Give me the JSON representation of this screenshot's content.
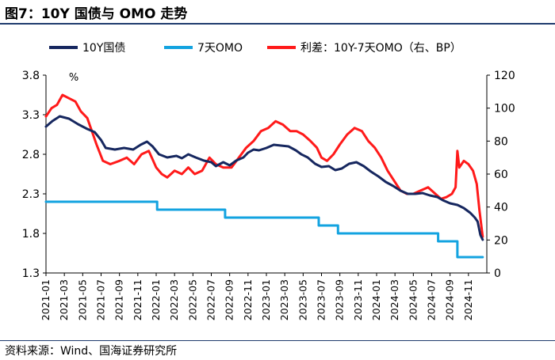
{
  "title": "图7：10Y 国债与 OMO 走势",
  "source": "资料来源：Wind、国海证券研究所",
  "chart_data": {
    "type": "line",
    "unit_label": "%",
    "x_ticks": [
      "2021-01",
      "2021-03",
      "2021-05",
      "2021-07",
      "2021-09",
      "2021-11",
      "2022-01",
      "2022-03",
      "2022-05",
      "2022-07",
      "2022-09",
      "2022-11",
      "2023-01",
      "2023-03",
      "2023-05",
      "2023-07",
      "2023-09",
      "2023-11",
      "2024-01",
      "2024-03",
      "2024-05",
      "2024-07",
      "2024-09",
      "2024-11"
    ],
    "x_range": [
      0,
      48
    ],
    "left_axis": {
      "ylim": [
        1.3,
        3.8
      ],
      "ticks": [
        "1.3",
        "1.8",
        "2.3",
        "2.8",
        "3.3",
        "3.8"
      ]
    },
    "right_axis": {
      "ylim": [
        0,
        120
      ],
      "ticks": [
        "0",
        "20",
        "40",
        "60",
        "80",
        "100",
        "120"
      ]
    },
    "series": [
      {
        "name": "10Y国债",
        "color": "#16275f",
        "axis": "left",
        "points": [
          [
            0,
            3.15
          ],
          [
            0.7,
            3.22
          ],
          [
            1.5,
            3.28
          ],
          [
            2.5,
            3.25
          ],
          [
            3.5,
            3.18
          ],
          [
            4.5,
            3.12
          ],
          [
            5.3,
            3.08
          ],
          [
            6.0,
            2.98
          ],
          [
            6.5,
            2.88
          ],
          [
            7.5,
            2.86
          ],
          [
            8.5,
            2.88
          ],
          [
            9.5,
            2.86
          ],
          [
            10.3,
            2.92
          ],
          [
            11.0,
            2.96
          ],
          [
            11.6,
            2.9
          ],
          [
            12.3,
            2.8
          ],
          [
            13.2,
            2.76
          ],
          [
            14.2,
            2.78
          ],
          [
            14.8,
            2.75
          ],
          [
            15.5,
            2.8
          ],
          [
            16.3,
            2.76
          ],
          [
            17.2,
            2.72
          ],
          [
            18.0,
            2.7
          ],
          [
            18.5,
            2.65
          ],
          [
            19.3,
            2.7
          ],
          [
            20.0,
            2.66
          ],
          [
            20.7,
            2.72
          ],
          [
            21.5,
            2.76
          ],
          [
            22.0,
            2.82
          ],
          [
            22.6,
            2.86
          ],
          [
            23.2,
            2.85
          ],
          [
            24.0,
            2.88
          ],
          [
            24.8,
            2.92
          ],
          [
            25.6,
            2.91
          ],
          [
            26.4,
            2.9
          ],
          [
            27.2,
            2.85
          ],
          [
            27.8,
            2.8
          ],
          [
            28.5,
            2.76
          ],
          [
            29.3,
            2.68
          ],
          [
            30.0,
            2.64
          ],
          [
            30.8,
            2.65
          ],
          [
            31.5,
            2.6
          ],
          [
            32.2,
            2.62
          ],
          [
            33.0,
            2.68
          ],
          [
            33.8,
            2.7
          ],
          [
            34.6,
            2.65
          ],
          [
            35.4,
            2.58
          ],
          [
            36.2,
            2.52
          ],
          [
            37.0,
            2.45
          ],
          [
            37.8,
            2.4
          ],
          [
            38.6,
            2.34
          ],
          [
            39.4,
            2.3
          ],
          [
            40.2,
            2.3
          ],
          [
            41.0,
            2.31
          ],
          [
            41.8,
            2.28
          ],
          [
            42.6,
            2.26
          ],
          [
            43.2,
            2.22
          ],
          [
            44.0,
            2.18
          ],
          [
            44.8,
            2.16
          ],
          [
            45.5,
            2.12
          ],
          [
            46.2,
            2.06
          ],
          [
            46.7,
            2.0
          ],
          [
            47.0,
            1.95
          ],
          [
            47.3,
            1.78
          ],
          [
            47.55,
            1.72
          ]
        ]
      },
      {
        "name": "7天OMO",
        "color": "#13a3e0",
        "axis": "left",
        "points": [
          [
            0,
            2.2
          ],
          [
            12.1,
            2.2
          ],
          [
            12.1,
            2.1
          ],
          [
            19.5,
            2.1
          ],
          [
            19.5,
            2.0
          ],
          [
            29.7,
            2.0
          ],
          [
            29.7,
            1.9
          ],
          [
            31.8,
            1.9
          ],
          [
            31.8,
            1.8
          ],
          [
            42.7,
            1.8
          ],
          [
            42.7,
            1.7
          ],
          [
            44.8,
            1.7
          ],
          [
            44.8,
            1.5
          ],
          [
            47.55,
            1.5
          ]
        ]
      },
      {
        "name": "利差：10Y-7天OMO（右、BP）",
        "color": "#ff1a1a",
        "axis": "right",
        "points": [
          [
            0,
            95
          ],
          [
            0.6,
            100
          ],
          [
            1.2,
            102
          ],
          [
            1.8,
            108
          ],
          [
            2.5,
            106
          ],
          [
            3.2,
            104
          ],
          [
            3.8,
            98
          ],
          [
            4.5,
            94
          ],
          [
            5.0,
            86
          ],
          [
            5.5,
            78
          ],
          [
            6.2,
            68
          ],
          [
            7.0,
            66
          ],
          [
            8.0,
            68
          ],
          [
            8.8,
            70
          ],
          [
            9.6,
            66
          ],
          [
            10.4,
            72
          ],
          [
            11.2,
            74
          ],
          [
            12.0,
            64
          ],
          [
            12.6,
            60
          ],
          [
            13.2,
            58
          ],
          [
            14.0,
            62
          ],
          [
            14.8,
            60
          ],
          [
            15.5,
            64
          ],
          [
            16.2,
            60
          ],
          [
            17.0,
            62
          ],
          [
            17.8,
            70
          ],
          [
            18.5,
            66
          ],
          [
            19.3,
            64
          ],
          [
            20.2,
            64
          ],
          [
            21.0,
            70
          ],
          [
            21.8,
            76
          ],
          [
            22.6,
            80
          ],
          [
            23.4,
            86
          ],
          [
            24.2,
            88
          ],
          [
            25.0,
            92
          ],
          [
            25.8,
            90
          ],
          [
            26.6,
            86
          ],
          [
            27.3,
            86
          ],
          [
            28.0,
            84
          ],
          [
            28.8,
            80
          ],
          [
            29.5,
            76
          ],
          [
            30.0,
            70
          ],
          [
            30.6,
            68
          ],
          [
            31.3,
            72
          ],
          [
            32.0,
            78
          ],
          [
            32.8,
            84
          ],
          [
            33.6,
            88
          ],
          [
            34.4,
            86
          ],
          [
            35.1,
            80
          ],
          [
            35.8,
            76
          ],
          [
            36.5,
            70
          ],
          [
            37.2,
            62
          ],
          [
            37.9,
            56
          ],
          [
            38.6,
            50
          ],
          [
            39.3,
            48
          ],
          [
            40.0,
            48
          ],
          [
            40.8,
            50
          ],
          [
            41.6,
            52
          ],
          [
            42.4,
            48
          ],
          [
            43.0,
            45
          ],
          [
            43.6,
            46
          ],
          [
            44.2,
            48
          ],
          [
            44.6,
            52
          ],
          [
            44.8,
            74
          ],
          [
            45.0,
            64
          ],
          [
            45.5,
            68
          ],
          [
            46.0,
            66
          ],
          [
            46.5,
            62
          ],
          [
            46.9,
            54
          ],
          [
            47.2,
            38
          ],
          [
            47.55,
            22
          ]
        ]
      }
    ]
  }
}
